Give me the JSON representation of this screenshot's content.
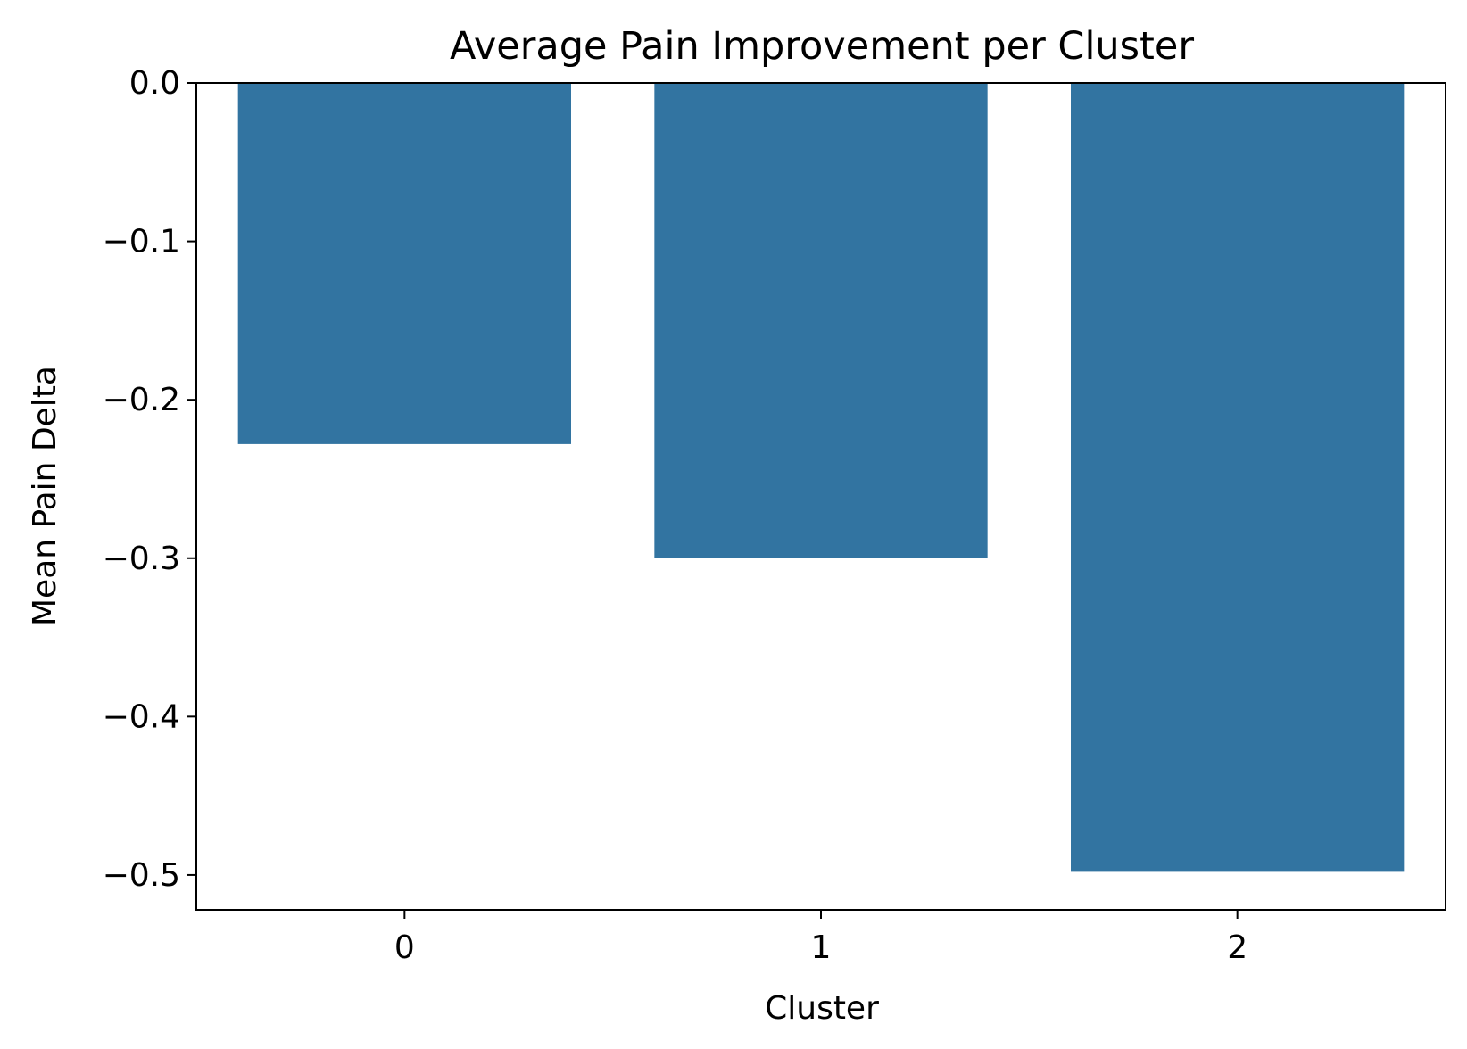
{
  "chart_data": {
    "type": "bar",
    "title": "Average Pain Improvement per Cluster",
    "xlabel": "Cluster",
    "ylabel": "Mean Pain Delta",
    "categories": [
      "0",
      "1",
      "2"
    ],
    "values": [
      -0.228,
      -0.3,
      -0.498
    ],
    "ylim": [
      -0.522,
      0.0
    ],
    "yticks": [
      0.0,
      -0.1,
      -0.2,
      -0.3,
      -0.4,
      -0.5
    ],
    "ytick_labels": [
      "0.0",
      "−0.1",
      "−0.2",
      "−0.3",
      "−0.4",
      "−0.5"
    ],
    "bar_color": "#3274a1",
    "grid": false,
    "legend": "none"
  }
}
